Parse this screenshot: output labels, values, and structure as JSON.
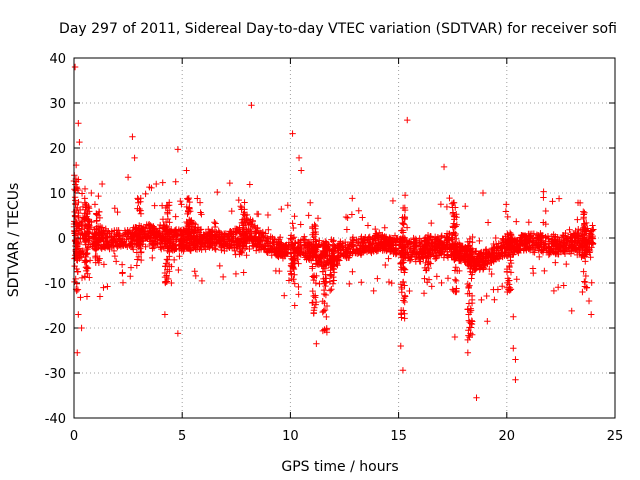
{
  "chart_data": {
    "type": "scatter",
    "title": "Day 297 of 2011, Sidereal Day-to-day VTEC variation (SDTVAR) for receiver sofi",
    "xlabel": "GPS time / hours",
    "ylabel": "SDTVAR / TECUs",
    "xlim": [
      0,
      25
    ],
    "ylim": [
      -40,
      40
    ],
    "xticks": [
      0,
      5,
      10,
      15,
      20,
      25
    ],
    "xtick_labels": [
      "0",
      "5",
      "10",
      "15",
      "20",
      "25"
    ],
    "yticks": [
      -40,
      -30,
      -20,
      -10,
      0,
      10,
      20,
      30,
      40
    ],
    "ytick_labels": [
      "-40",
      "-30",
      "-20",
      "-10",
      "0",
      "10",
      "20",
      "30",
      "40"
    ],
    "grid": true,
    "marker": "+",
    "color": "#ff0000",
    "band": [
      [
        0.0,
        0.3,
        8
      ],
      [
        0.5,
        0.5,
        6
      ],
      [
        1.0,
        0.0,
        3
      ],
      [
        1.5,
        -0.3,
        2.5
      ],
      [
        2.0,
        -0.5,
        2.5
      ],
      [
        2.5,
        0.0,
        2.5
      ],
      [
        3.0,
        0.3,
        3
      ],
      [
        3.5,
        0.5,
        3
      ],
      [
        4.0,
        0.3,
        3
      ],
      [
        4.5,
        0.0,
        3
      ],
      [
        5.0,
        -0.5,
        2.5
      ],
      [
        5.5,
        0.5,
        4.5
      ],
      [
        6.0,
        -0.3,
        2.5
      ],
      [
        6.5,
        -0.5,
        2.5
      ],
      [
        7.0,
        -0.5,
        2.5
      ],
      [
        7.5,
        0.0,
        3
      ],
      [
        8.0,
        1.5,
        4
      ],
      [
        8.5,
        0.0,
        3
      ],
      [
        9.0,
        -1.5,
        2.5
      ],
      [
        9.5,
        -2.0,
        2.5
      ],
      [
        10.0,
        -3.0,
        2.5
      ],
      [
        10.5,
        -2.0,
        3
      ],
      [
        11.0,
        -3.0,
        3
      ],
      [
        11.5,
        -4.0,
        3.5
      ],
      [
        12.0,
        -4.0,
        3
      ],
      [
        12.5,
        -2.5,
        2.5
      ],
      [
        13.0,
        -2.0,
        2.5
      ],
      [
        13.5,
        -1.5,
        2.5
      ],
      [
        14.0,
        -1.0,
        2.5
      ],
      [
        14.5,
        -1.0,
        2.5
      ],
      [
        15.0,
        -2.0,
        2.5
      ],
      [
        15.5,
        -3.0,
        3
      ],
      [
        16.0,
        -2.5,
        3
      ],
      [
        16.5,
        -2.0,
        3
      ],
      [
        17.0,
        -1.5,
        3
      ],
      [
        17.5,
        -2.0,
        3
      ],
      [
        18.0,
        -3.5,
        2.5
      ],
      [
        18.5,
        -5.0,
        2.5
      ],
      [
        19.0,
        -4.5,
        2.5
      ],
      [
        19.5,
        -3.0,
        2.5
      ],
      [
        20.0,
        -2.0,
        2.5
      ],
      [
        20.5,
        -1.5,
        2.5
      ],
      [
        21.0,
        -1.0,
        2.5
      ],
      [
        21.5,
        -1.0,
        2.5
      ],
      [
        22.0,
        -1.5,
        2.5
      ],
      [
        22.5,
        -1.5,
        2.5
      ],
      [
        23.0,
        -1.0,
        2.5
      ],
      [
        23.5,
        -1.0,
        3.5
      ],
      [
        24.0,
        0.0,
        3
      ]
    ],
    "outliers": [
      [
        0.05,
        38
      ],
      [
        0.2,
        25.5
      ],
      [
        0.25,
        21.3
      ],
      [
        0.1,
        16.2
      ],
      [
        0.15,
        -25.5
      ],
      [
        0.2,
        -17.0
      ],
      [
        0.3,
        -13.2
      ],
      [
        0.35,
        -20.0
      ],
      [
        0.6,
        -13.0
      ],
      [
        0.8,
        10.0
      ],
      [
        1.2,
        -13.0
      ],
      [
        1.3,
        12.0
      ],
      [
        2.7,
        22.5
      ],
      [
        2.8,
        17.8
      ],
      [
        2.5,
        13.5
      ],
      [
        2.6,
        -8.5
      ],
      [
        3.8,
        12.0
      ],
      [
        4.1,
        12.3
      ],
      [
        4.2,
        -17.0
      ],
      [
        4.5,
        -10.0
      ],
      [
        4.7,
        12.5
      ],
      [
        4.8,
        19.7
      ],
      [
        4.8,
        -21.2
      ],
      [
        5.2,
        15.0
      ],
      [
        7.2,
        12.2
      ],
      [
        8.2,
        29.5
      ],
      [
        10.1,
        23.2
      ],
      [
        10.4,
        17.8
      ],
      [
        10.5,
        15.0
      ],
      [
        10.2,
        -15.0
      ],
      [
        11.2,
        -23.5
      ],
      [
        11.6,
        -16.0
      ],
      [
        15.1,
        -24.0
      ],
      [
        15.2,
        -29.4
      ],
      [
        15.4,
        26.2
      ],
      [
        15.3,
        9.5
      ],
      [
        17.1,
        15.8
      ],
      [
        17.6,
        -22.0
      ],
      [
        18.2,
        -25.5
      ],
      [
        18.4,
        -21.5
      ],
      [
        18.6,
        -35.5
      ],
      [
        19.1,
        -18.5
      ],
      [
        18.9,
        10.0
      ],
      [
        20.3,
        -17.5
      ],
      [
        20.3,
        -24.5
      ],
      [
        20.4,
        -27.0
      ],
      [
        20.4,
        -31.5
      ],
      [
        21.7,
        10.3
      ],
      [
        21.8,
        6.0
      ],
      [
        23.0,
        -16.2
      ],
      [
        23.8,
        -14.0
      ],
      [
        23.9,
        -17.0
      ],
      [
        23.7,
        -11.0
      ],
      [
        19.3,
        -8.0
      ],
      [
        21.5,
        -4.2
      ]
    ],
    "spikes": [
      [
        0.1,
        14,
        -12
      ],
      [
        0.6,
        9,
        -9
      ],
      [
        1.1,
        6,
        -6
      ],
      [
        3.0,
        9,
        -5
      ],
      [
        4.3,
        8,
        -10
      ],
      [
        5.3,
        9,
        -4
      ],
      [
        7.8,
        8,
        -4
      ],
      [
        10.1,
        5,
        -11
      ],
      [
        11.1,
        3,
        -17
      ],
      [
        11.6,
        0,
        -21
      ],
      [
        11.9,
        0,
        -12
      ],
      [
        15.2,
        7,
        -18
      ],
      [
        16.3,
        0,
        -10
      ],
      [
        17.6,
        8,
        -12
      ],
      [
        18.3,
        0,
        -24
      ],
      [
        20.1,
        2,
        -13
      ],
      [
        23.6,
        6,
        -12
      ]
    ]
  }
}
